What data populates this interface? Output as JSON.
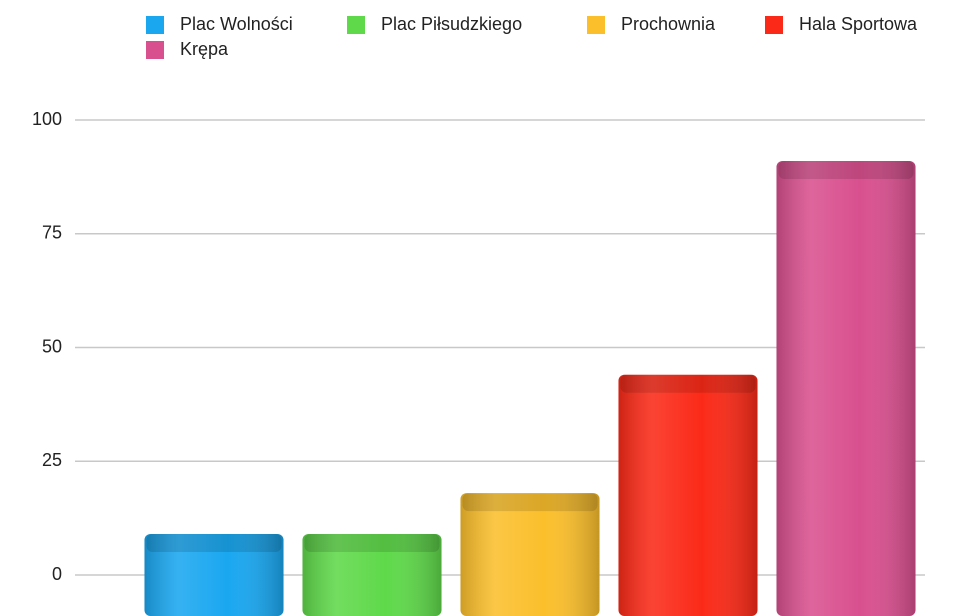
{
  "chart_data": {
    "type": "bar",
    "series": [
      {
        "name": "Plac Wolności",
        "color": "#1aa7f0",
        "values": [
          9
        ]
      },
      {
        "name": "Plac Piłsudzkiego",
        "color": "#5fd94a",
        "values": [
          9
        ]
      },
      {
        "name": "Prochownia",
        "color": "#fbbf2c",
        "values": [
          18
        ]
      },
      {
        "name": "Hala Sportowa",
        "color": "#fb2a18",
        "values": [
          44
        ]
      },
      {
        "name": "Krępa",
        "color": "#d9508f",
        "values": [
          91
        ]
      }
    ],
    "ylim": [
      0,
      100
    ],
    "yticks": [
      0,
      25,
      50,
      75,
      100
    ],
    "grid": true,
    "legend": "top"
  }
}
